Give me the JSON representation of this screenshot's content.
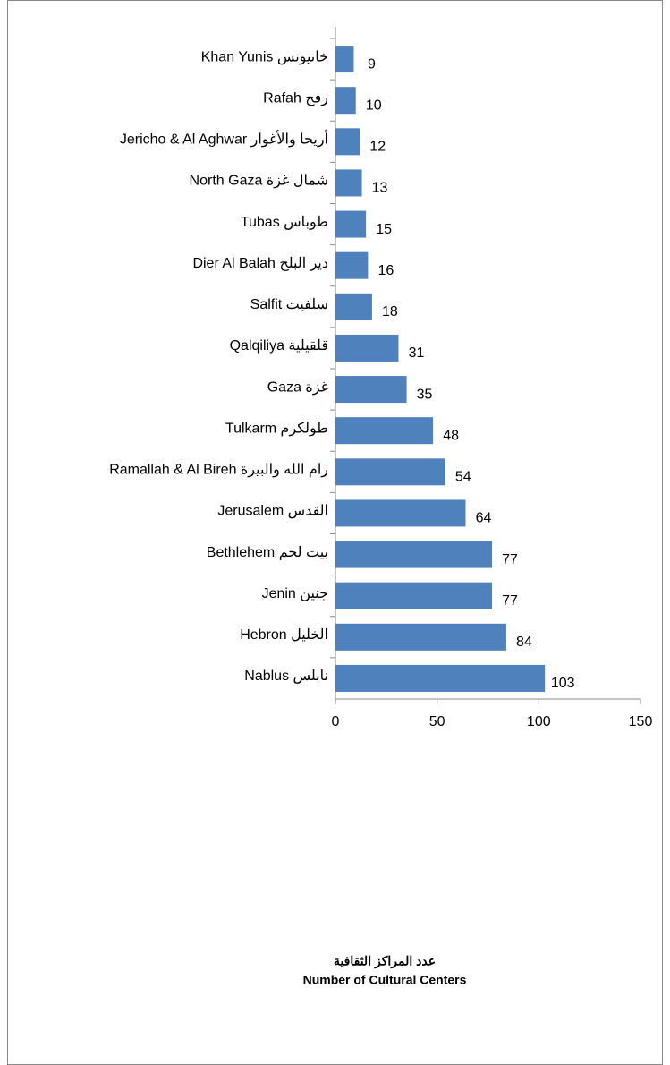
{
  "chart_data": {
    "type": "hbar",
    "categories": [
      "Khan Yunis  خانيونس",
      "Rafah  رفح",
      "Jericho & Al Aghwar  أريحا والأغوار",
      "North Gaza  شمال غزة",
      "Tubas  طوباس",
      "Dier Al Balah  دير البلح",
      "Salfit  سلفيت",
      "Qalqiliya  قلقيلية",
      "Gaza  غزة",
      "Tulkarm  طولكرم",
      "Ramallah & Al Bireh  رام الله والبيرة",
      "Jerusalem  القدس",
      "Bethlehem  بيت لحم",
      "Jenin  جنين",
      "Hebron  الخليل",
      "Nablus  نابلس"
    ],
    "values": [
      9,
      10,
      12,
      13,
      15,
      16,
      18,
      31,
      35,
      48,
      54,
      64,
      77,
      77,
      84,
      103
    ],
    "color": "#4f81bd",
    "xlim": [
      0,
      150
    ],
    "xticks": [
      0,
      50,
      100,
      150
    ],
    "xlabel_ar": "عدد المراكز الثقافية",
    "xlabel": "Number of Cultural Centers"
  }
}
